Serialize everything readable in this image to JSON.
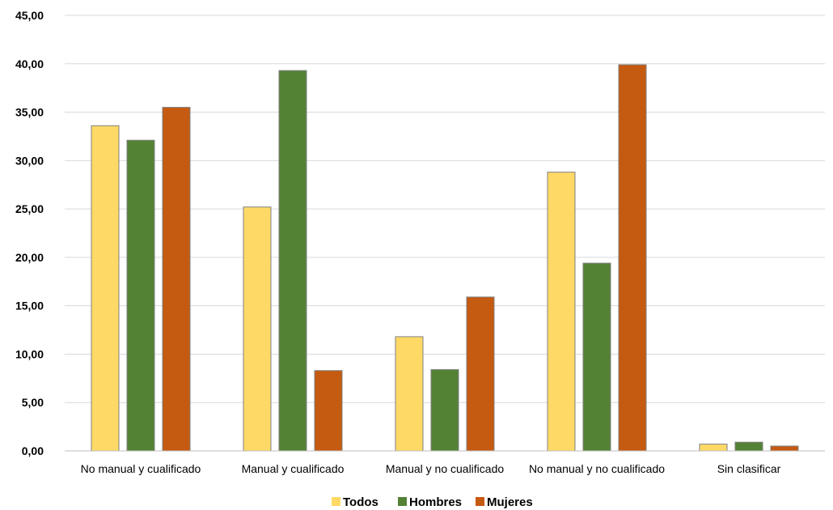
{
  "chart_data": {
    "type": "bar",
    "title": "",
    "xlabel": "",
    "ylabel": "",
    "categories": [
      "No manual y cualificado",
      "Manual y cualificado",
      "Manual y no cualificado",
      "No manual y no cualificado",
      "Sin clasificar"
    ],
    "series": [
      {
        "name": "Todos",
        "color": "#FFD966",
        "values": [
          33.6,
          25.2,
          11.8,
          28.8,
          0.7
        ]
      },
      {
        "name": "Hombres",
        "color": "#548235",
        "values": [
          32.1,
          39.3,
          8.4,
          19.4,
          0.9
        ]
      },
      {
        "name": "Mujeres",
        "color": "#C55A11",
        "values": [
          35.5,
          8.3,
          15.9,
          39.9,
          0.5
        ]
      }
    ],
    "yticks": [
      "0,00",
      "5,00",
      "10,00",
      "15,00",
      "20,00",
      "25,00",
      "30,00",
      "35,00",
      "40,00",
      "45,00"
    ],
    "ylim": [
      0,
      45
    ],
    "grid": true,
    "legend_position": "bottom"
  }
}
